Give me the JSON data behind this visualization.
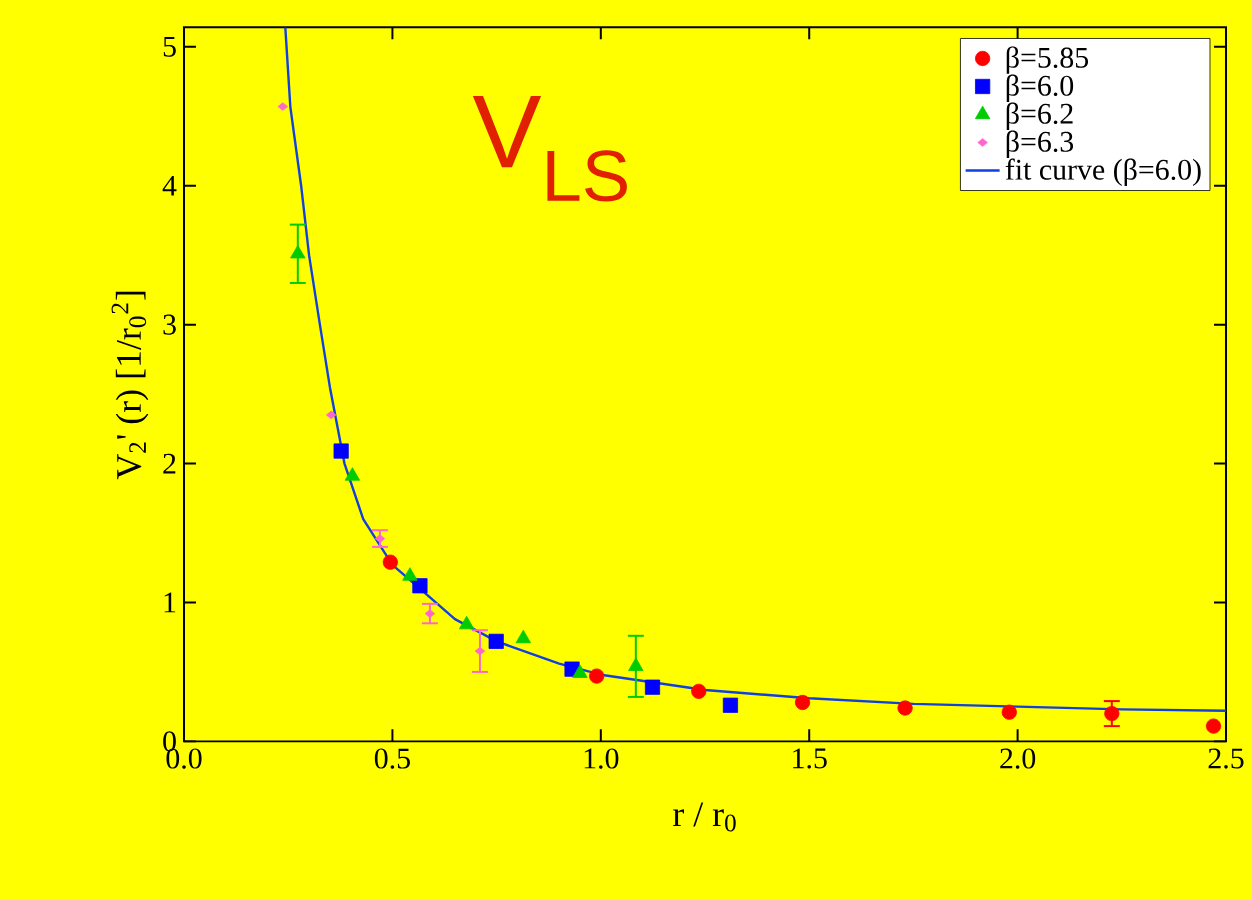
{
  "chart_data": {
    "type": "scatter",
    "xlabel": "r / r$_{0}$",
    "ylabel": "V$_{2}$' (r) [1/r$_{0}$$^{2}$]",
    "annotations": [
      "V$_{LS}$"
    ],
    "xlim": [
      0,
      2.5
    ],
    "ylim": [
      0,
      5.14
    ],
    "xticks": [
      {
        "value": 0,
        "label": "0.0"
      },
      {
        "value": 0.5,
        "label": "0.5"
      },
      {
        "value": 1,
        "label": "1.0"
      },
      {
        "value": 1.5,
        "label": "1.5"
      },
      {
        "value": 2,
        "label": "2.0"
      },
      {
        "value": 2.5,
        "label": "2.5"
      }
    ],
    "yticks": [
      0,
      1,
      2,
      3,
      4,
      5
    ],
    "legend": "top right",
    "series": [
      {
        "name": "β=5.85",
        "color": "#ff0000",
        "marker": "circle",
        "x": [
          0.495,
          0.99,
          1.235,
          1.484,
          1.73,
          1.98,
          2.226,
          2.47
        ],
        "values": [
          1.29,
          0.47,
          0.36,
          0.28,
          0.24,
          0.21,
          0.2,
          0.11
        ],
        "errors": [
          null,
          null,
          null,
          null,
          null,
          null,
          0.09,
          null
        ]
      },
      {
        "name": "β=6.0",
        "color": "#0000ff",
        "marker": "square",
        "x": [
          0.377,
          0.566,
          0.749,
          0.931,
          1.124,
          1.311
        ],
        "values": [
          2.09,
          1.12,
          0.72,
          0.52,
          0.39,
          0.26
        ]
      },
      {
        "name": "β=6.2",
        "color": "#00cc00",
        "marker": "triangle",
        "x": [
          0.273,
          0.404,
          0.542,
          0.678,
          0.814,
          0.95,
          1.084
        ],
        "values": [
          3.51,
          1.91,
          1.19,
          0.84,
          0.74,
          0.49,
          0.54
        ],
        "errors": [
          0.21,
          null,
          null,
          null,
          null,
          null,
          0.22
        ]
      },
      {
        "name": "β=6.3",
        "color": "#ff66cc",
        "marker": "diamond",
        "x": [
          0.237,
          0.353,
          0.47,
          0.59,
          0.71
        ],
        "values": [
          4.57,
          2.35,
          1.46,
          0.92,
          0.65
        ],
        "errors": [
          null,
          null,
          0.06,
          0.07,
          0.15
        ]
      },
      {
        "name": "fit curve (β=6.0)",
        "type": "line",
        "color": "#1040e0",
        "marker": "none",
        "x": [
          0.243,
          0.255,
          0.281,
          0.3,
          0.326,
          0.35,
          0.385,
          0.43,
          0.5,
          0.566,
          0.65,
          0.75,
          0.9,
          1.0,
          1.25,
          1.5,
          1.75,
          2.0,
          2.25,
          2.5
        ],
        "values": [
          5.14,
          4.57,
          4.0,
          3.5,
          3.0,
          2.55,
          2.0,
          1.6,
          1.27,
          1.1,
          0.88,
          0.72,
          0.56,
          0.48,
          0.37,
          0.31,
          0.27,
          0.25,
          0.23,
          0.22
        ]
      }
    ]
  }
}
